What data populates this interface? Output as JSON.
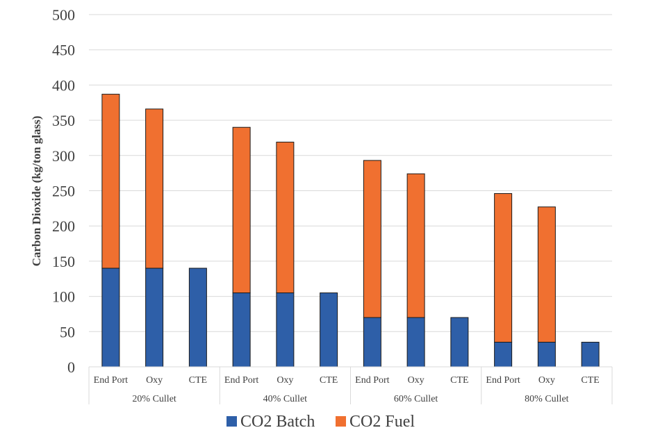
{
  "chart_data": {
    "type": "bar",
    "stacked": true,
    "ylabel": "Carbon Dioxide (kg/ton glass)",
    "xlabel": "",
    "ylim": [
      0,
      500
    ],
    "yticks": [
      0,
      50,
      100,
      150,
      200,
      250,
      300,
      350,
      400,
      450,
      500
    ],
    "grid": true,
    "legend_position": "bottom",
    "groups": [
      {
        "label": "20% Cullet",
        "categories": [
          "End Port",
          "Oxy",
          "CTE"
        ]
      },
      {
        "label": "40% Cullet",
        "categories": [
          "End Port",
          "Oxy",
          "CTE"
        ]
      },
      {
        "label": "60% Cullet",
        "categories": [
          "End Port",
          "Oxy",
          "CTE"
        ]
      },
      {
        "label": "80% Cullet",
        "categories": [
          "End Port",
          "Oxy",
          "CTE"
        ]
      }
    ],
    "series": [
      {
        "name": "CO2 Batch",
        "color": "#2e5fa8",
        "values": [
          140,
          140,
          140,
          105,
          105,
          105,
          70,
          70,
          70,
          35,
          35,
          35
        ]
      },
      {
        "name": "CO2 Fuel",
        "color": "#f07030",
        "values": [
          247,
          226,
          0,
          235,
          214,
          0,
          223,
          204,
          0,
          211,
          192,
          0
        ]
      }
    ]
  }
}
